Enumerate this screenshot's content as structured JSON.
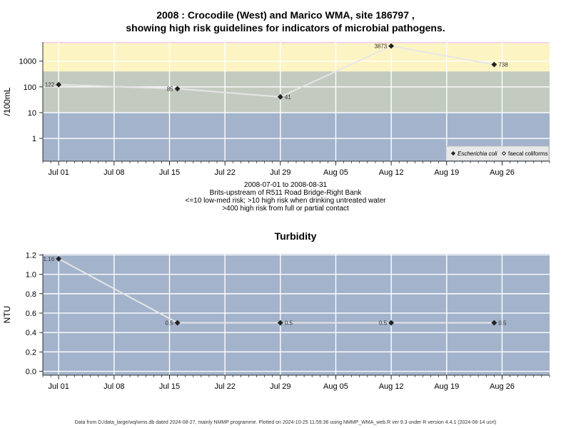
{
  "header": {
    "title_line1": "2008 : Crocodile (West) and Marico WMA, site 186797 ,",
    "title_line2": "showing high risk guidelines for indicators of microbial pathogens."
  },
  "notes": {
    "date_range": "2008-07-01 to 2008-08-31",
    "site_name": "Brits-upstream of R511 Road Bridge-Right Bank",
    "guideline_1": "<=10 low-med risk; >10 high risk when drinking untreated water",
    "guideline_2": ">400 high risk from full or partial contact"
  },
  "footer": "Data from D:/data_large/wq/wms.db dated 2024-08-27, mainly NMMP programme. Plotted on 2024-10-25 11:59:36 using NMMP_WMA_web.R ver 9.3 under R version 4.4.1 (2024-06-14 ucrt)",
  "chart_data": [
    {
      "type": "line",
      "title": "",
      "ylabel": "/100mL",
      "yscale": "log",
      "yticks": [
        1,
        10,
        100,
        1000
      ],
      "ytick_labels": [
        "1",
        "10",
        "100",
        "1000"
      ],
      "xticks": [
        "2008-07-01",
        "2008-07-08",
        "2008-07-15",
        "2008-07-22",
        "2008-07-29",
        "2008-08-05",
        "2008-08-12",
        "2008-08-19",
        "2008-08-26"
      ],
      "xtick_labels": [
        "Jul 01",
        "Jul 08",
        "Jul 15",
        "Jul 22",
        "Jul 29",
        "Aug 05",
        "Aug 12",
        "Aug 19",
        "Aug 26"
      ],
      "xlim": [
        "2008-06-29",
        "2008-09-01"
      ],
      "ylim": [
        0.13,
        5500
      ],
      "grid": true,
      "risk_bands": [
        {
          "from": 0.13,
          "to": 10,
          "color": "#a3b3cb"
        },
        {
          "from": 10,
          "to": 400,
          "color": "#c3cbc0"
        },
        {
          "from": 400,
          "to": 5000,
          "color": "#fdf4c4"
        },
        {
          "from": 5000,
          "to": 5500,
          "color": "#f3c9f0"
        }
      ],
      "legend_position": "bottom-right",
      "series": [
        {
          "name": "Escherichia coli",
          "marker": "filled-diamond",
          "x": [
            "2008-07-01",
            "2008-07-16",
            "2008-07-29",
            "2008-08-12",
            "2008-08-25"
          ],
          "y": [
            122,
            85,
            41,
            3873,
            738
          ],
          "labels": [
            "122",
            "85",
            "41",
            "3873",
            "738"
          ]
        },
        {
          "name": "faecal coliforms",
          "marker": "open-diamond",
          "x": [],
          "y": [],
          "labels": []
        }
      ]
    },
    {
      "type": "line",
      "title": "Turbidity",
      "ylabel": "NTU",
      "yticks": [
        0.0,
        0.2,
        0.4,
        0.6,
        0.8,
        1.0,
        1.2
      ],
      "ytick_labels": [
        "0.0",
        "0.2",
        "0.4",
        "0.6",
        "0.8",
        "1.0",
        "1.2"
      ],
      "xticks": [
        "2008-07-01",
        "2008-07-08",
        "2008-07-15",
        "2008-07-22",
        "2008-07-29",
        "2008-08-05",
        "2008-08-12",
        "2008-08-19",
        "2008-08-26"
      ],
      "xtick_labels": [
        "Jul 01",
        "Jul 08",
        "Jul 15",
        "Jul 22",
        "Jul 29",
        "Aug 05",
        "Aug 12",
        "Aug 19",
        "Aug 26"
      ],
      "xlim": [
        "2008-06-29",
        "2008-09-01"
      ],
      "ylim": [
        -0.04,
        1.21
      ],
      "grid": true,
      "background": "#a3b3cb",
      "series": [
        {
          "name": "Turbidity",
          "marker": "filled-diamond",
          "x": [
            "2008-07-01",
            "2008-07-16",
            "2008-07-29",
            "2008-08-12",
            "2008-08-25"
          ],
          "y": [
            1.16,
            0.5,
            0.5,
            0.5,
            0.5
          ],
          "labels": [
            "1.16",
            "0.5",
            "0.5",
            "0.5",
            "0.5"
          ]
        }
      ]
    }
  ]
}
